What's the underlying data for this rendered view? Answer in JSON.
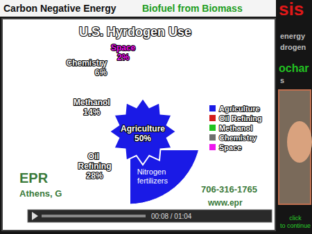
{
  "chart_data": {
    "type": "pie",
    "title": "U.S. Hyrdogen Use",
    "categories": [
      "Agriculture",
      "Oil Refining",
      "Methanol",
      "Chemistry",
      "Space"
    ],
    "values": [
      50,
      28,
      14,
      6,
      2
    ],
    "value_labels": [
      "50%",
      "28%",
      "14%",
      "6%",
      "2%"
    ],
    "colors": [
      "#1a1ae6",
      "#d41c1c",
      "#20c420",
      "#6e6e6e",
      "#ee14ee"
    ],
    "data_labels": true,
    "legend": "right",
    "annotations": [
      "Nitrogen fertilizers"
    ]
  },
  "header": {
    "left": "Carbon Negative Energy",
    "right": "Biofuel from Biomass"
  },
  "side_text": [
    "sis",
    "energy",
    "drogen",
    "ochar",
    "s"
  ],
  "footer": {
    "company": "EPR",
    "location": "Athens, G",
    "phone": "706-316-1765",
    "website": "www.epr",
    "player_time": "00:08 / 01:04",
    "link": [
      "click",
      "to continue"
    ]
  }
}
